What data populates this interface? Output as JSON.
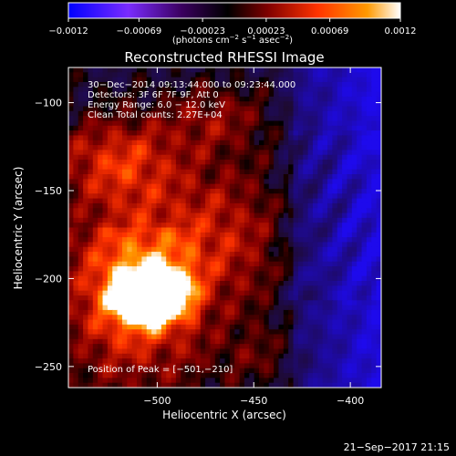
{
  "chart_data": {
    "type": "heatmap",
    "title": "Reconstructed RHESSI Image",
    "xlabel": "Heliocentric X (arcsec)",
    "ylabel": "Heliocentric Y (arcsec)",
    "xlim": [
      -546,
      -384
    ],
    "ylim": [
      -262,
      -80
    ],
    "xticks": [
      {
        "value": -500,
        "label": "−500"
      },
      {
        "value": -450,
        "label": "−450"
      },
      {
        "value": -400,
        "label": "−400"
      }
    ],
    "yticks": [
      {
        "value": -100,
        "label": "−100"
      },
      {
        "value": -150,
        "label": "−150"
      },
      {
        "value": -200,
        "label": "−200"
      },
      {
        "value": -250,
        "label": "−250"
      }
    ],
    "annotations": [
      "30−Dec−2014 09:13:44.000 to 09:23:44.000",
      "Detectors: 3F 6F 7F 9F, Att 0",
      "Energy Range: 6.0 − 12.0 keV",
      "Clean     Total counts: 2.27E+04"
    ],
    "peak_label": "Position of Peak = [−501,−210]",
    "peak": {
      "x": -501,
      "y": -210
    },
    "colorbar": {
      "ticks": [
        {
          "value": -0.0012,
          "label": "−0.0012"
        },
        {
          "value": -0.00069,
          "label": "−0.00069"
        },
        {
          "value": -0.00023,
          "label": "−0.00023"
        },
        {
          "value": 0.00023,
          "label": "0.00023"
        },
        {
          "value": 0.00069,
          "label": "0.00069"
        },
        {
          "value": 0.0012,
          "label": "0.0012"
        }
      ],
      "range": [
        -0.0012,
        0.0012
      ],
      "unit_main": "(photons cm",
      "unit_exp1": "−2",
      "unit_mid": " s",
      "unit_exp2": "−1",
      "unit_end": " asec",
      "unit_exp3": "−2",
      "unit_close": ")"
    },
    "colors": {
      "negative": "#0000ff",
      "zero": "#000000",
      "low": "#8b0000",
      "mid": "#ff3300",
      "high": "#ff9900",
      "max": "#ffffff",
      "background": "#000000"
    }
  },
  "footer_timestamp": "21−Sep−2017 21:15"
}
